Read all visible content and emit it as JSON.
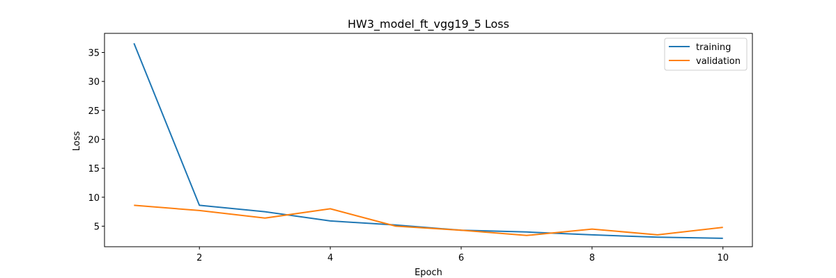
{
  "chart_data": {
    "type": "line",
    "title": "HW3_model_ft_vgg19_5 Loss",
    "xlabel": "Epoch",
    "ylabel": "Loss",
    "x": [
      1,
      2,
      3,
      4,
      5,
      6,
      7,
      8,
      9,
      10
    ],
    "xlim": [
      0.55,
      10.45
    ],
    "ylim": [
      1.45,
      38.3
    ],
    "xticks": [
      2,
      4,
      6,
      8,
      10
    ],
    "yticks": [
      5,
      10,
      15,
      20,
      25,
      30,
      35
    ],
    "grid": false,
    "legend_position": "top-right",
    "series": [
      {
        "name": "training",
        "color": "#1f77b4",
        "values": [
          36.6,
          8.6,
          7.5,
          5.9,
          5.2,
          4.3,
          4.0,
          3.5,
          3.1,
          2.9
        ]
      },
      {
        "name": "validation",
        "color": "#ff7f0e",
        "values": [
          8.6,
          7.7,
          6.4,
          8.0,
          5.0,
          4.3,
          3.4,
          4.5,
          3.5,
          4.8
        ]
      }
    ]
  }
}
